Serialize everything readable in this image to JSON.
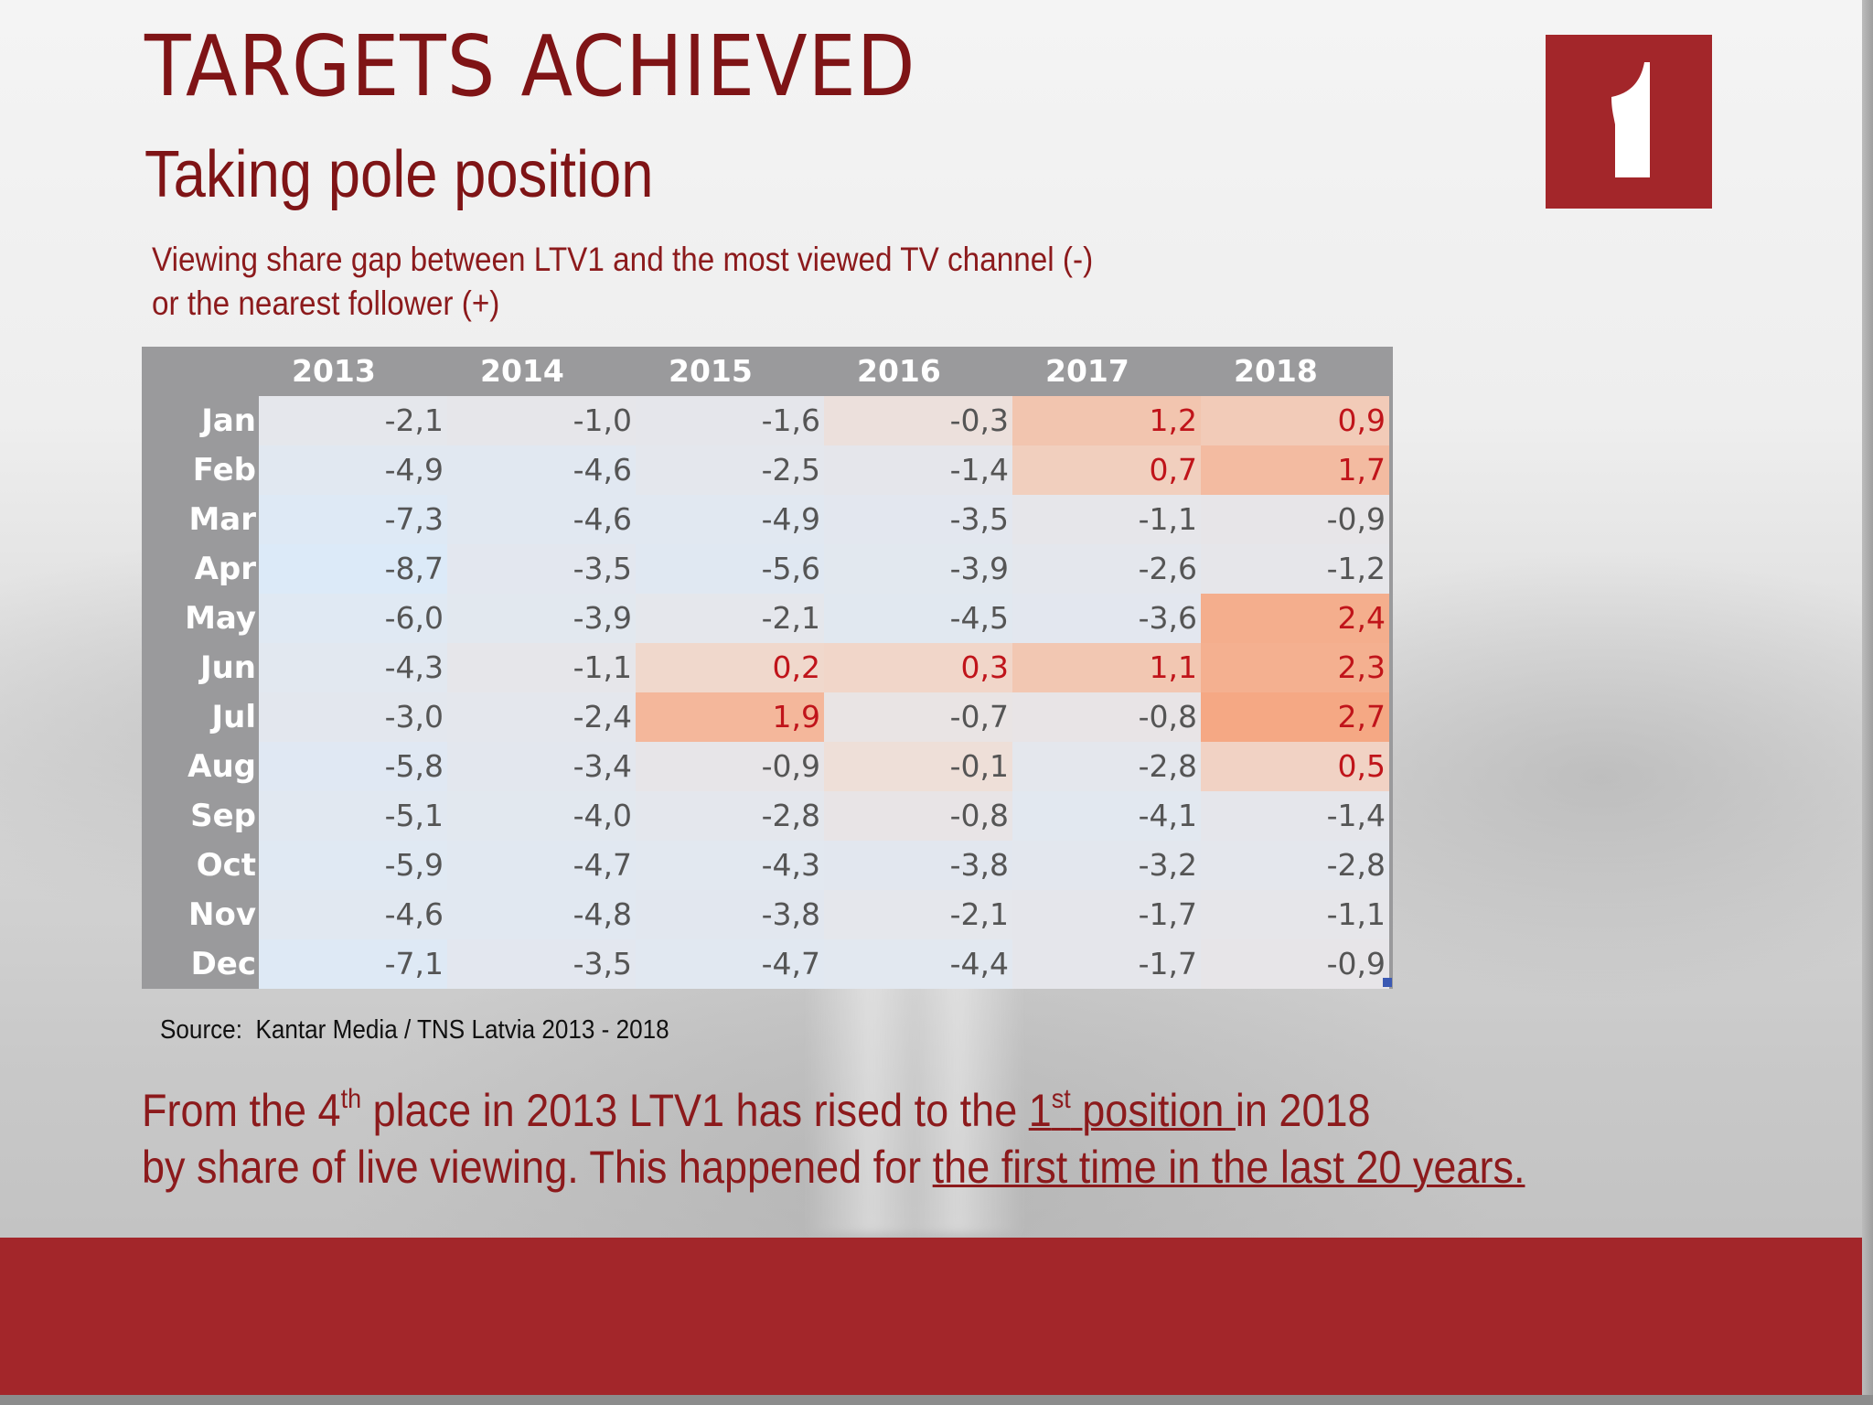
{
  "slide": {
    "title": "TARGETS ACHIEVED",
    "subtitle": "Taking pole position",
    "description_line1": "Viewing share gap between LTV1 and the most viewed TV channel (-)",
    "description_line2": "or the nearest follower (+)",
    "source_label": "Source:",
    "source_text": "Kantar Media / TNS Latvia 2013 - 2018",
    "summary": {
      "p1": "From the 4",
      "sup1": "th",
      "p2": " place in 2013 LTV1 has rised to the ",
      "u1_num": "1",
      "u1_sup": "st",
      "u1_text": " position ",
      "p3": "in 2018",
      "p4": "by share of live viewing. This happened for ",
      "u2": "the first time in the last 20 years."
    }
  },
  "colors": {
    "brand_red": "#a3262a",
    "title_red": "#7f1416",
    "positive_text": "#c0141a",
    "negative_text": "#555555",
    "header_gray": "#9a9a9c"
  },
  "logo": {
    "icon": "ltv1-logo-icon"
  },
  "table": {
    "columns": [
      "2013",
      "2014",
      "2015",
      "2016",
      "2017",
      "2018"
    ],
    "rows": [
      {
        "month": "Jan",
        "values": [
          "-2,1",
          "-1,0",
          "-1,6",
          "-0,3",
          "1,2",
          "0,9"
        ]
      },
      {
        "month": "Feb",
        "values": [
          "-4,9",
          "-4,6",
          "-2,5",
          "-1,4",
          "0,7",
          "1,7"
        ]
      },
      {
        "month": "Mar",
        "values": [
          "-7,3",
          "-4,6",
          "-4,9",
          "-3,5",
          "-1,1",
          "-0,9"
        ]
      },
      {
        "month": "Apr",
        "values": [
          "-8,7",
          "-3,5",
          "-5,6",
          "-3,9",
          "-2,6",
          "-1,2"
        ]
      },
      {
        "month": "May",
        "values": [
          "-6,0",
          "-3,9",
          "-2,1",
          "-4,5",
          "-3,6",
          "2,4"
        ]
      },
      {
        "month": "Jun",
        "values": [
          "-4,3",
          "-1,1",
          "0,2",
          "0,3",
          "1,1",
          "2,3"
        ]
      },
      {
        "month": "Jul",
        "values": [
          "-3,0",
          "-2,4",
          "1,9",
          "-0,7",
          "-0,8",
          "2,7"
        ]
      },
      {
        "month": "Aug",
        "values": [
          "-5,8",
          "-3,4",
          "-0,9",
          "-0,1",
          "-2,8",
          "0,5"
        ]
      },
      {
        "month": "Sep",
        "values": [
          "-5,1",
          "-4,0",
          "-2,8",
          "-0,8",
          "-4,1",
          "-1,4"
        ]
      },
      {
        "month": "Oct",
        "values": [
          "-5,9",
          "-4,7",
          "-4,3",
          "-3,8",
          "-3,2",
          "-2,8"
        ]
      },
      {
        "month": "Nov",
        "values": [
          "-4,6",
          "-4,8",
          "-3,8",
          "-2,1",
          "-1,7",
          "-1,1"
        ]
      },
      {
        "month": "Dec",
        "values": [
          "-7,1",
          "-3,5",
          "-4,7",
          "-4,4",
          "-1,7",
          "-0,9"
        ]
      }
    ]
  }
}
